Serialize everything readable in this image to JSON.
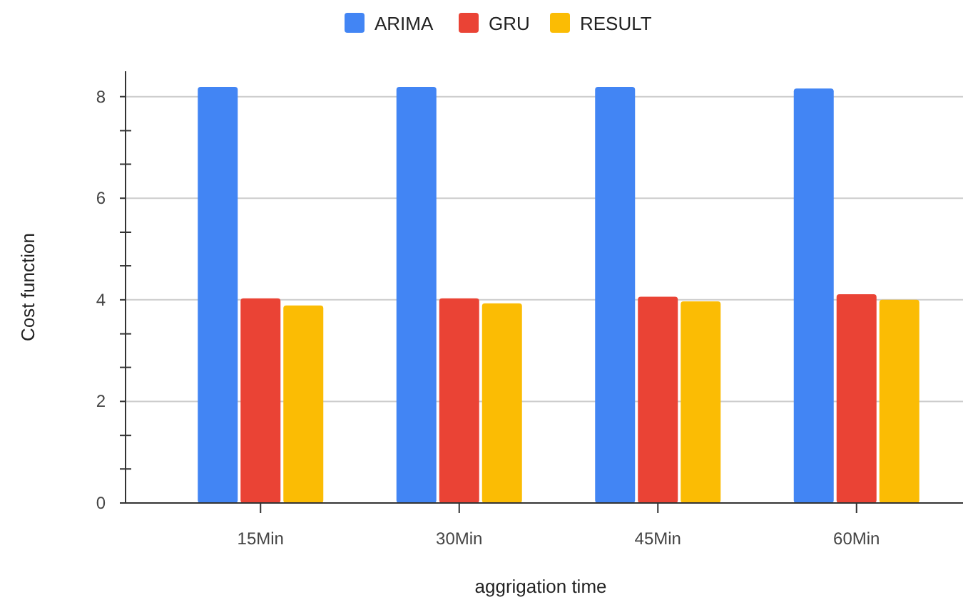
{
  "chart_data": {
    "type": "bar",
    "xlabel": "aggrigation time",
    "ylabel": "Cost function",
    "categories": [
      "15Min",
      "30Min",
      "45Min",
      "60Min"
    ],
    "series": [
      {
        "name": "ARIMA",
        "color": "#4285f4",
        "values": [
          8.19,
          8.19,
          8.19,
          8.16
        ]
      },
      {
        "name": "GRU",
        "color": "#ea4335",
        "values": [
          4.03,
          4.03,
          4.06,
          4.11
        ]
      },
      {
        "name": "RESULT",
        "color": "#fbbc04",
        "values": [
          3.89,
          3.93,
          3.97,
          4.0
        ]
      }
    ],
    "ylim": [
      0,
      8.5
    ],
    "yticks": [
      0,
      {
        "value": 0.67,
        "label": null
      },
      {
        "value": 1.33,
        "label": null
      },
      2,
      {
        "value": 2.67,
        "label": null
      },
      {
        "value": 3.33,
        "label": null
      },
      4,
      {
        "value": 4.67,
        "label": null
      },
      {
        "value": 5.33,
        "label": null
      },
      6,
      {
        "value": 6.67,
        "label": null
      },
      {
        "value": 7.33,
        "label": null
      },
      8
    ],
    "grid": "y",
    "legend": "top"
  }
}
